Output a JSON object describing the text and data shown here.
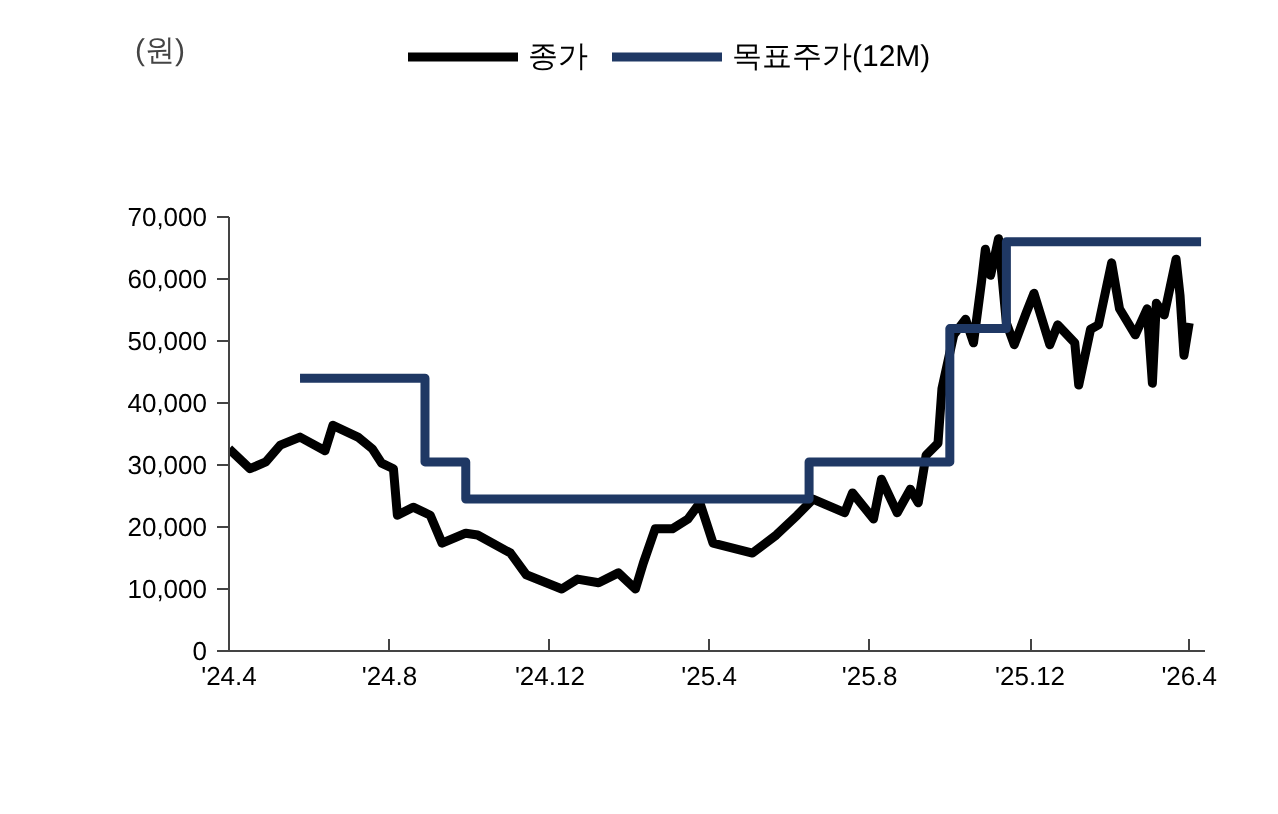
{
  "chart_data": {
    "type": "line",
    "ylabel": "(원)",
    "x": [
      "2024-04-01",
      "2024-04-17",
      "2024-04-29",
      "2024-05-10",
      "2024-05-25",
      "2024-06-13",
      "2024-06-19",
      "2024-07-08",
      "2024-07-19",
      "2024-07-26",
      "2024-08-04",
      "2024-08-07",
      "2024-08-19",
      "2024-09-01",
      "2024-09-10",
      "2024-09-28",
      "2024-10-07",
      "2024-11-01",
      "2024-11-13",
      "2024-12-10",
      "2024-12-22",
      "2025-01-07",
      "2025-01-22",
      "2025-02-04",
      "2025-02-10",
      "2025-02-19",
      "2025-03-04",
      "2025-03-16",
      "2025-03-25",
      "2025-04-04",
      "2025-05-04",
      "2025-05-22",
      "2025-06-07",
      "2025-06-19",
      "2025-07-13",
      "2025-07-19",
      "2025-08-04",
      "2025-08-10",
      "2025-08-22",
      "2025-09-01",
      "2025-09-07",
      "2025-09-13",
      "2025-09-22",
      "2025-09-25",
      "2025-10-04",
      "2025-10-13",
      "2025-10-19",
      "2025-10-25",
      "2025-10-28",
      "2025-11-01",
      "2025-11-07",
      "2025-11-13",
      "2025-11-19",
      "2025-11-28",
      "2025-12-04",
      "2025-12-16",
      "2025-12-22",
      "2026-01-04",
      "2026-01-07",
      "2026-01-16",
      "2026-01-22",
      "2026-02-01",
      "2026-02-07",
      "2026-02-19",
      "2026-02-28",
      "2026-03-04",
      "2026-03-07",
      "2026-03-13",
      "2026-03-22",
      "2026-03-25",
      "2026-03-28",
      "2026-04-01"
    ],
    "series": [
      {
        "name": "종가",
        "color": "#000000",
        "values": [
          32600,
          29400,
          30500,
          33200,
          34500,
          32300,
          36400,
          34500,
          32600,
          30300,
          29400,
          21900,
          23200,
          21900,
          17400,
          19000,
          18700,
          15800,
          12300,
          10000,
          11600,
          11000,
          12600,
          10000,
          14200,
          19700,
          19700,
          21300,
          23900,
          17400,
          15800,
          18700,
          21900,
          24500,
          22300,
          25500,
          21300,
          27700,
          22300,
          26100,
          23900,
          31600,
          33500,
          42300,
          51000,
          53500,
          49700,
          59400,
          64800,
          60600,
          66500,
          52900,
          49400,
          54500,
          57700,
          49400,
          52600,
          49700,
          42900,
          51900,
          52600,
          62600,
          55200,
          51000,
          55200,
          43200,
          56100,
          54200,
          63200,
          57400,
          47700,
          52900
        ]
      },
      {
        "name": "목표주가(12M)",
        "type": "step",
        "color": "#1f3864",
        "x": [
          "2024-05-25",
          "2024-08-28",
          "2024-09-28",
          "2025-06-16",
          "2025-10-01",
          "2025-11-13",
          "2026-04-10"
        ],
        "values": [
          44000,
          30500,
          24500,
          30500,
          52000,
          66000,
          66000
        ]
      }
    ],
    "xlim": [
      "2024-04-01",
      "2026-04-13"
    ],
    "xticks": [
      {
        "value": "2024-04",
        "label": "'24.4"
      },
      {
        "value": "2024-08",
        "label": "'24.8"
      },
      {
        "value": "2024-12",
        "label": "'24.12"
      },
      {
        "value": "2025-04",
        "label": "'25.4"
      },
      {
        "value": "2025-08",
        "label": "'25.8"
      },
      {
        "value": "2025-12",
        "label": "'25.12"
      },
      {
        "value": "2026-04",
        "label": "'26.4"
      }
    ],
    "ylim": [
      0,
      70000
    ],
    "yticks": [
      0,
      {
        "value": 10000,
        "label": "10,000"
      },
      {
        "value": 20000,
        "label": "20,000"
      },
      {
        "value": 30000,
        "label": "30,000"
      },
      {
        "value": 40000,
        "label": "40,000"
      },
      {
        "value": 50000,
        "label": "50,000"
      },
      {
        "value": 60000,
        "label": "60,000"
      },
      {
        "value": 70000,
        "label": "70,000"
      }
    ],
    "grid": false,
    "legend": "top"
  }
}
